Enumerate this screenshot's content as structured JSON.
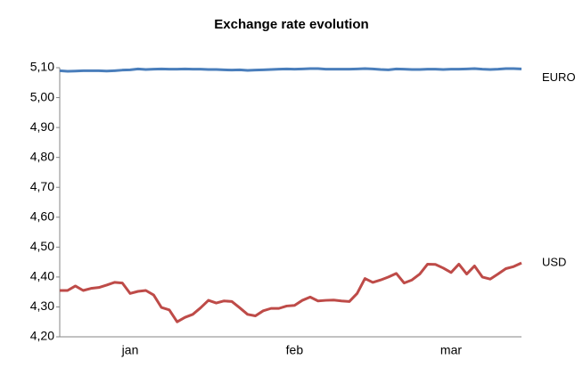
{
  "chart_data": {
    "type": "line",
    "title": "Exchange rate evolution",
    "categories": [
      null,
      null,
      null,
      null,
      null,
      null,
      null,
      null,
      null,
      "jan",
      null,
      null,
      null,
      null,
      null,
      null,
      null,
      null,
      null,
      null,
      null,
      null,
      null,
      null,
      null,
      null,
      null,
      null,
      null,
      null,
      "feb",
      null,
      null,
      null,
      null,
      null,
      null,
      null,
      null,
      null,
      null,
      null,
      null,
      null,
      null,
      null,
      null,
      null,
      null,
      null,
      "mar",
      null,
      null,
      null,
      null,
      null,
      null,
      null,
      null,
      null
    ],
    "series": [
      {
        "name": "EURO",
        "color": "#4a7ebb",
        "values": [
          5.09,
          5.088,
          5.089,
          5.09,
          5.09,
          5.09,
          5.089,
          5.09,
          5.092,
          5.093,
          5.096,
          5.094,
          5.095,
          5.096,
          5.095,
          5.095,
          5.096,
          5.095,
          5.095,
          5.094,
          5.094,
          5.093,
          5.092,
          5.093,
          5.091,
          5.092,
          5.093,
          5.094,
          5.095,
          5.096,
          5.095,
          5.096,
          5.097,
          5.097,
          5.095,
          5.095,
          5.095,
          5.095,
          5.096,
          5.097,
          5.096,
          5.094,
          5.093,
          5.096,
          5.095,
          5.094,
          5.094,
          5.095,
          5.095,
          5.094,
          5.095,
          5.095,
          5.096,
          5.097,
          5.095,
          5.094,
          5.095,
          5.097,
          5.097,
          5.096
        ]
      },
      {
        "name": "USD",
        "color": "#be4b48",
        "values": [
          4.355,
          4.355,
          4.37,
          4.355,
          4.362,
          4.365,
          4.373,
          4.382,
          4.38,
          4.345,
          4.352,
          4.355,
          4.34,
          4.298,
          4.29,
          4.25,
          4.265,
          4.275,
          4.297,
          4.322,
          4.313,
          4.32,
          4.318,
          4.297,
          4.275,
          4.27,
          4.287,
          4.295,
          4.295,
          4.303,
          4.305,
          4.322,
          4.333,
          4.32,
          4.322,
          4.323,
          4.32,
          4.318,
          4.345,
          4.395,
          4.382,
          4.39,
          4.4,
          4.412,
          4.38,
          4.39,
          4.41,
          4.443,
          4.442,
          4.43,
          4.415,
          4.443,
          4.41,
          4.437,
          4.4,
          4.393,
          4.41,
          4.428,
          4.435,
          4.447
        ]
      }
    ],
    "ylim": [
      4.2,
      5.1
    ],
    "yticks": [
      {
        "value": 4.2,
        "label": "4,20"
      },
      {
        "value": 4.3,
        "label": "4,30"
      },
      {
        "value": 4.4,
        "label": "4,40"
      },
      {
        "value": 4.5,
        "label": "4,50"
      },
      {
        "value": 4.6,
        "label": "4,60"
      },
      {
        "value": 4.7,
        "label": "4,70"
      },
      {
        "value": 4.8,
        "label": "4,80"
      },
      {
        "value": 4.9,
        "label": "4,90"
      },
      {
        "value": 5.0,
        "label": "5,00"
      },
      {
        "value": 5.1,
        "label": "5,10"
      }
    ],
    "grid": false
  }
}
